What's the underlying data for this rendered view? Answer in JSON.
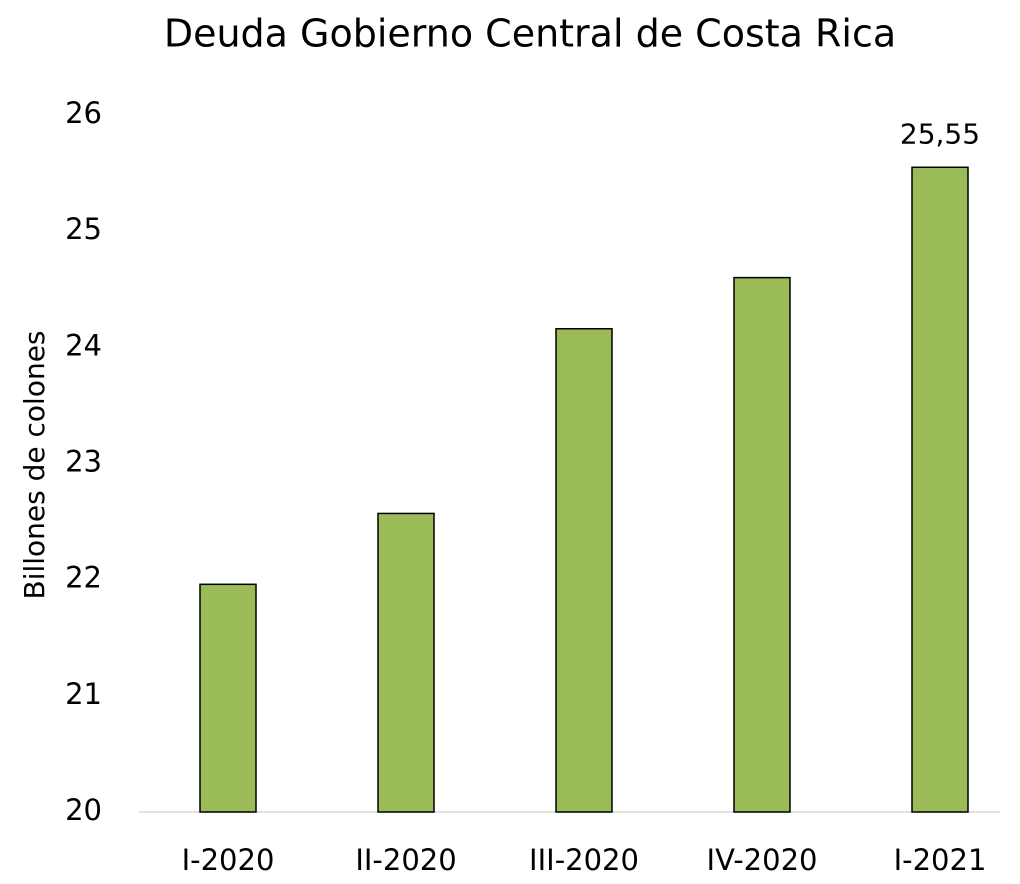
{
  "chart_data": {
    "type": "bar",
    "title": "Deuda Gobierno Central de Costa Rica",
    "y_label": "Billones de colones",
    "categories": [
      "I-2020",
      "II-2020",
      "III-2020",
      "IV-2020",
      "I-2021"
    ],
    "values": [
      21.96,
      22.57,
      24.16,
      24.6,
      25.55
    ],
    "value_labels": [
      null,
      null,
      null,
      null,
      "25,55"
    ],
    "color": "#9bbb59",
    "ylim": [
      20,
      26
    ],
    "yticks": [
      20,
      21,
      22,
      23,
      24,
      25,
      26
    ],
    "grid": false
  }
}
